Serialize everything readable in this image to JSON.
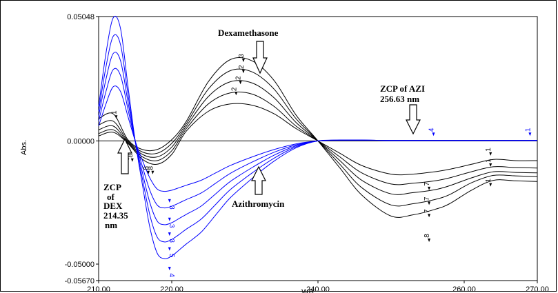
{
  "chart_data": {
    "type": "line",
    "title": "",
    "xlabel": "",
    "ylabel": "Abs.",
    "xlim": [
      210,
      270
    ],
    "ylim": [
      -0.0567,
      0.05048
    ],
    "x_tick_labels": [
      {
        "value": 210,
        "label": "210.00"
      },
      {
        "value": 220,
        "label": "220.00"
      },
      {
        "value": 240,
        "label": "240.00"
      },
      {
        "value": 260,
        "label": "260.00"
      },
      {
        "value": 270,
        "label": "270.00"
      }
    ],
    "y_tick_labels": [
      {
        "value": 0.05048,
        "label": "0.05048"
      },
      {
        "value": 0.0,
        "label": "0.00000"
      },
      {
        "value": -0.05,
        "label": "-0.05000"
      },
      {
        "value": -0.0567,
        "label": "-0.05670"
      }
    ],
    "grid": false,
    "series": [
      {
        "color": "#000000",
        "x": [
          210,
          212,
          214,
          216,
          218,
          220,
          222,
          225,
          228,
          231,
          234,
          237,
          240,
          243,
          246,
          250,
          253,
          256,
          258,
          261,
          264,
          267,
          270
        ],
        "y": [
          0.002,
          0.0035,
          -0.001,
          -0.0075,
          -0.0095,
          -0.0055,
          0.004,
          0.012,
          0.015,
          0.0145,
          0.011,
          0.005,
          0.0,
          -0.005,
          -0.01,
          -0.0135,
          -0.0135,
          -0.0125,
          -0.0115,
          -0.0095,
          -0.0075,
          -0.008,
          -0.008
        ]
      },
      {
        "color": "#000000",
        "x": [
          210,
          212,
          214,
          216,
          218,
          220,
          222,
          225,
          228,
          231,
          234,
          237,
          240,
          243,
          246,
          250,
          253,
          256,
          258,
          261,
          264,
          267,
          270
        ],
        "y": [
          0.003,
          0.0045,
          -0.0008,
          -0.0065,
          -0.008,
          -0.004,
          0.005,
          0.015,
          0.0195,
          0.019,
          0.014,
          0.006,
          0.0,
          -0.0065,
          -0.013,
          -0.0175,
          -0.0172,
          -0.0162,
          -0.015,
          -0.0125,
          -0.0105,
          -0.0108,
          -0.011
        ]
      },
      {
        "color": "#000000",
        "x": [
          210,
          212,
          214,
          216,
          218,
          220,
          222,
          225,
          228,
          231,
          234,
          237,
          240,
          243,
          246,
          250,
          253,
          256,
          258,
          261,
          264,
          267,
          270
        ],
        "y": [
          0.0045,
          0.006,
          -0.0004,
          -0.0055,
          -0.0065,
          -0.0025,
          0.006,
          0.018,
          0.024,
          0.0235,
          0.0175,
          0.0075,
          0.0,
          -0.008,
          -0.016,
          -0.0215,
          -0.021,
          -0.0198,
          -0.0182,
          -0.015,
          -0.0125,
          -0.0128,
          -0.013
        ]
      },
      {
        "color": "#000000",
        "x": [
          210,
          212,
          214,
          216,
          218,
          220,
          222,
          225,
          228,
          231,
          234,
          237,
          240,
          243,
          246,
          250,
          253,
          256,
          258,
          261,
          264,
          267,
          270
        ],
        "y": [
          0.0065,
          0.008,
          0.0,
          -0.0045,
          -0.005,
          -0.001,
          0.007,
          0.021,
          0.0285,
          0.028,
          0.021,
          0.009,
          0.0,
          -0.0095,
          -0.019,
          -0.026,
          -0.0255,
          -0.0238,
          -0.0218,
          -0.017,
          -0.014,
          -0.0142,
          -0.0145
        ]
      },
      {
        "color": "#000000",
        "x": [
          210,
          212,
          214,
          216,
          218,
          220,
          222,
          225,
          228,
          231,
          234,
          237,
          240,
          243,
          246,
          250,
          253,
          256,
          258,
          261,
          264,
          267,
          270
        ],
        "y": [
          0.009,
          0.011,
          0.0005,
          -0.0035,
          -0.0035,
          0.0005,
          0.008,
          0.024,
          0.033,
          0.0325,
          0.0245,
          0.0105,
          0.0,
          -0.011,
          -0.022,
          -0.0305,
          -0.03,
          -0.0278,
          -0.0255,
          -0.02,
          -0.016,
          -0.0162,
          -0.0165
        ]
      },
      {
        "color": "#0000ff",
        "x": [
          210,
          211,
          212,
          213,
          214,
          215,
          216,
          217,
          218,
          219,
          220,
          221,
          222,
          224,
          226,
          228,
          231,
          234,
          237,
          240,
          243,
          246,
          250,
          255,
          260,
          265,
          270
        ],
        "y": [
          0.006,
          0.015,
          0.022,
          0.02,
          0.01,
          0.0,
          -0.008,
          -0.015,
          -0.0195,
          -0.0205,
          -0.02,
          -0.019,
          -0.018,
          -0.016,
          -0.013,
          -0.01,
          -0.0065,
          -0.0035,
          -0.0012,
          0.0,
          0.0003,
          0.0003,
          0.0002,
          0.0002,
          0.0002,
          0.0002,
          0.0002
        ]
      },
      {
        "color": "#0000ff",
        "x": [
          210,
          211,
          212,
          213,
          214,
          215,
          216,
          217,
          218,
          219,
          220,
          221,
          222,
          224,
          226,
          228,
          231,
          234,
          237,
          240,
          243,
          246,
          250,
          255,
          260,
          265,
          270
        ],
        "y": [
          0.008,
          0.02,
          0.029,
          0.0265,
          0.013,
          0.0,
          -0.0105,
          -0.02,
          -0.026,
          -0.0272,
          -0.0265,
          -0.0252,
          -0.0238,
          -0.0212,
          -0.0172,
          -0.0132,
          -0.0086,
          -0.0046,
          -0.0016,
          0.0,
          0.0003,
          0.0003,
          0.0002,
          0.0002,
          0.0002,
          0.0002,
          0.0002
        ]
      },
      {
        "color": "#0000ff",
        "x": [
          210,
          211,
          212,
          213,
          214,
          215,
          216,
          217,
          218,
          219,
          220,
          221,
          222,
          224,
          226,
          228,
          231,
          234,
          237,
          240,
          243,
          246,
          250,
          255,
          260,
          265,
          270
        ],
        "y": [
          0.01,
          0.025,
          0.0355,
          0.0325,
          0.016,
          0.0,
          -0.013,
          -0.025,
          -0.0325,
          -0.034,
          -0.0332,
          -0.0315,
          -0.0298,
          -0.0265,
          -0.0215,
          -0.0165,
          -0.0108,
          -0.0058,
          -0.002,
          0.0,
          0.0003,
          0.0003,
          0.0002,
          0.0002,
          0.0002,
          0.0002,
          0.0002
        ]
      },
      {
        "color": "#0000ff",
        "x": [
          210,
          211,
          212,
          213,
          214,
          215,
          216,
          217,
          218,
          219,
          220,
          221,
          222,
          224,
          226,
          228,
          231,
          234,
          237,
          240,
          243,
          246,
          250,
          255,
          260,
          265,
          270
        ],
        "y": [
          0.012,
          0.03,
          0.0425,
          0.039,
          0.0192,
          0.0,
          -0.0155,
          -0.03,
          -0.039,
          -0.041,
          -0.04,
          -0.038,
          -0.0358,
          -0.0318,
          -0.0258,
          -0.0198,
          -0.013,
          -0.007,
          -0.0024,
          0.0,
          0.0003,
          0.0003,
          0.0002,
          0.0002,
          0.0002,
          0.0002,
          0.0002
        ]
      },
      {
        "color": "#0000ff",
        "x": [
          210,
          211,
          212,
          213,
          214,
          215,
          216,
          217,
          218,
          219,
          220,
          221,
          222,
          224,
          226,
          228,
          231,
          234,
          237,
          240,
          243,
          246,
          250,
          255,
          260,
          265,
          270
        ],
        "y": [
          0.014,
          0.0355,
          0.05,
          0.0455,
          0.0225,
          0.0,
          -0.018,
          -0.035,
          -0.0455,
          -0.0478,
          -0.0467,
          -0.0443,
          -0.0418,
          -0.0371,
          -0.0301,
          -0.0231,
          -0.0152,
          -0.0082,
          -0.0028,
          0.0,
          0.0003,
          0.0003,
          0.0002,
          0.0002,
          0.0002,
          0.0002,
          0.0002
        ]
      }
    ],
    "curve_labels": [
      {
        "text": "3",
        "x": 229.8,
        "y": 0.0345,
        "color": "#000000",
        "rotate": -90
      },
      {
        "text": "2",
        "x": 229.8,
        "y": 0.03,
        "color": "#000000",
        "rotate": -90
      },
      {
        "text": "2",
        "x": 229.4,
        "y": 0.0255,
        "color": "#000000",
        "rotate": -90
      },
      {
        "text": "2",
        "x": 228.8,
        "y": 0.021,
        "color": "#000000",
        "rotate": -90
      },
      {
        "text": "1",
        "x": 212.4,
        "y": 0.0115,
        "color": "#000000",
        "rotate": -90
      },
      {
        "text": "8",
        "x": 214.0,
        "y": -0.006,
        "color": "#000000",
        "rotate": -90
      },
      {
        "text": "8",
        "x": 214.6,
        "y": -0.006,
        "color": "#000000",
        "rotate": -90
      },
      {
        "text": "8",
        "x": 216.8,
        "y": -0.011,
        "color": "#000000",
        "rotate": -90
      },
      {
        "text": "8",
        "x": 217.4,
        "y": -0.011,
        "color": "#000000",
        "rotate": -90
      },
      {
        "text": "7",
        "x": 255.2,
        "y": -0.0175,
        "color": "#000000",
        "rotate": -90
      },
      {
        "text": "7",
        "x": 255.2,
        "y": -0.0235,
        "color": "#000000",
        "rotate": -90
      },
      {
        "text": "7",
        "x": 255.2,
        "y": -0.0285,
        "color": "#000000",
        "rotate": -90
      },
      {
        "text": "8",
        "x": 255.2,
        "y": -0.0385,
        "color": "#000000",
        "rotate": -90
      },
      {
        "text": "1",
        "x": 263.6,
        "y": -0.0035,
        "color": "#000000",
        "rotate": -90
      },
      {
        "text": "1",
        "x": 263.6,
        "y": -0.008,
        "color": "#000000",
        "rotate": -90
      },
      {
        "text": "1",
        "x": 263.6,
        "y": -0.016,
        "color": "#000000",
        "rotate": -90
      },
      {
        "text": "3",
        "x": 219.7,
        "y": -0.027,
        "color": "#0000ff",
        "rotate": 90
      },
      {
        "text": "3",
        "x": 219.7,
        "y": -0.0345,
        "color": "#0000ff",
        "rotate": 90
      },
      {
        "text": "3",
        "x": 219.7,
        "y": -0.0405,
        "color": "#0000ff",
        "rotate": 90
      },
      {
        "text": "5",
        "x": 219.7,
        "y": -0.0465,
        "color": "#0000ff",
        "rotate": 90
      },
      {
        "text": "4",
        "x": 219.7,
        "y": -0.0545,
        "color": "#0000ff",
        "rotate": 90
      },
      {
        "text": "4",
        "x": 255.8,
        "y": 0.0045,
        "color": "#0000ff",
        "rotate": -90
      },
      {
        "text": "1",
        "x": 269.0,
        "y": 0.0045,
        "color": "#0000ff",
        "rotate": -90
      }
    ],
    "annotations": {
      "dexamethasone": "Dexamethasone",
      "zcp_azi_line1": "ZCP of AZI",
      "zcp_azi_line2": "256.63 nm",
      "azithromycin": "Azithromycin",
      "zcp_dex_line1": "ZCP",
      "zcp_dex_line2": "of",
      "zcp_dex_line3": "DEX",
      "zcp_dex_line4": "214.35",
      "zcp_dex_line5": "nm"
    },
    "x_axis_partial_text": "WB"
  }
}
